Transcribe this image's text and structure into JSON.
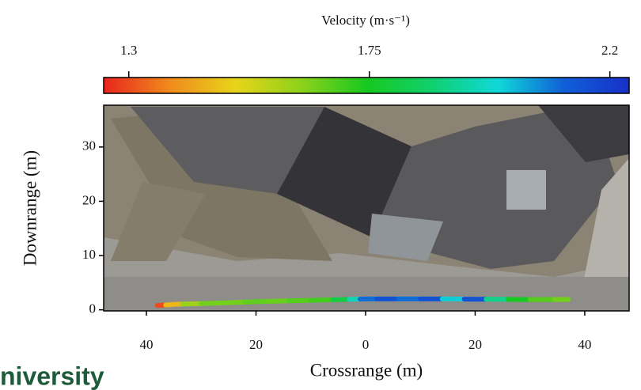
{
  "chart_data": {
    "type": "trajectory",
    "colorbar_label": "Velocity (m·s⁻¹)",
    "clim": [
      1.253,
      2.236
    ],
    "cticks": [
      1.3,
      1.75,
      2.2
    ],
    "colormap": [
      "#e8261e",
      "#f08a1c",
      "#e8d41a",
      "#8ed21a",
      "#18c81e",
      "#10d070",
      "#10d8d8",
      "#1060d8",
      "#1830c8"
    ],
    "xlabel": "Crossrange (m)",
    "ylabel": "Downrange (m)",
    "xlim": [
      -47.8,
      48.1
    ],
    "ylim": [
      -0.2,
      37.7
    ],
    "xticks": [
      {
        "value": -40,
        "label": "40"
      },
      {
        "value": -20,
        "label": "20"
      },
      0,
      20,
      40
    ],
    "yticks": [
      0,
      10,
      20,
      30
    ],
    "x": [
      -38,
      -35,
      -32,
      -28,
      -24,
      -20,
      -16,
      -12,
      -8,
      -4,
      -2,
      0,
      4,
      8,
      12,
      16,
      20,
      24,
      28,
      32,
      37
    ],
    "y": [
      0.8,
      1.0,
      1.1,
      1.2,
      1.35,
      1.5,
      1.6,
      1.7,
      1.8,
      1.9,
      1.95,
      2.0,
      2.0,
      2.0,
      2.0,
      2.0,
      1.95,
      1.95,
      1.9,
      1.9,
      1.9
    ],
    "velocity": [
      1.3,
      1.45,
      1.6,
      1.65,
      1.65,
      1.67,
      1.66,
      1.68,
      1.7,
      1.8,
      1.95,
      2.1,
      2.15,
      2.1,
      2.15,
      2.0,
      2.15,
      1.9,
      1.75,
      1.68,
      1.65
    ]
  },
  "logo_text": "niversity"
}
